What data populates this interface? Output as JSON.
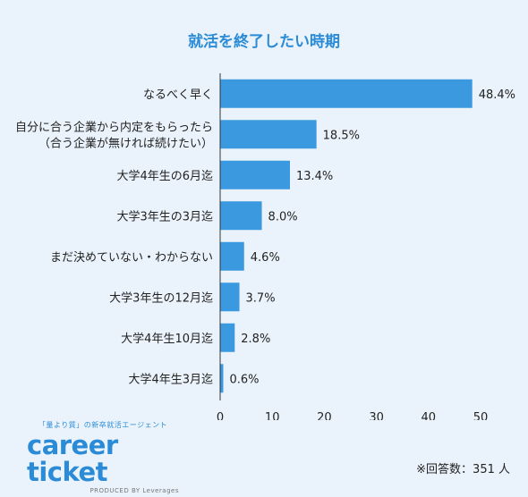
{
  "chart_data": {
    "type": "bar",
    "orientation": "horizontal",
    "title": "就活を終了したい時期",
    "categories": [
      [
        "なるべく早く"
      ],
      [
        "自分に合う企業から内定をもらったら",
        "（合う企業が無ければ続けたい）"
      ],
      [
        "大学4年生の6月迄"
      ],
      [
        "大学3年生の3月迄"
      ],
      [
        "まだ決めていない・わからない"
      ],
      [
        "大学3年生の12月迄"
      ],
      [
        "大学4年生10月迄"
      ],
      [
        "大学4年生3月迄"
      ]
    ],
    "values": [
      48.4,
      18.5,
      13.4,
      8.0,
      4.6,
      3.7,
      2.8,
      0.6
    ],
    "value_labels": [
      "48.4%",
      "18.5%",
      "13.4%",
      "8.0%",
      "4.6%",
      "3.7%",
      "2.8%",
      "0.6%"
    ],
    "xlim": [
      0,
      50
    ],
    "xticks": [
      "0",
      "10",
      "20",
      "30",
      "40",
      "50"
    ],
    "bar_color": "#3b99e0",
    "grid": false
  },
  "logo": {
    "tagline": "「量より質」の新卒就活エージェント",
    "name": "career ticket",
    "produced_by": "PRODUCED BY Leverages"
  },
  "respondents": "※回答数：351 人"
}
